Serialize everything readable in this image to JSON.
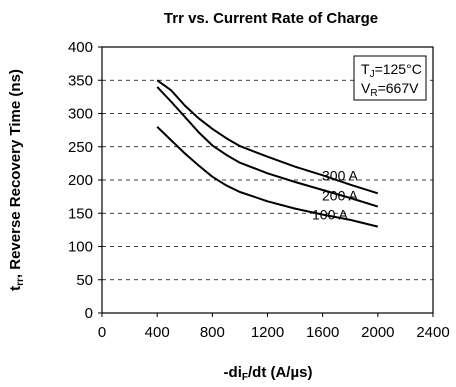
{
  "chart_data": {
    "type": "line",
    "title": "Trr vs. Current Rate of Charge",
    "xlabel": {
      "main": "-di",
      "sub": "F",
      "rest": "/dt (A/µs)"
    },
    "ylabel": {
      "main": "t",
      "sub": "rr",
      "rest": ", Reverse Recovery Time (ns)"
    },
    "xlim": [
      0,
      2400
    ],
    "ylim": [
      0,
      400
    ],
    "xticks": [
      "0",
      "400",
      "800",
      "1200",
      "1600",
      "2000",
      "2400"
    ],
    "yticks": [
      "0",
      "50",
      "100",
      "150",
      "200",
      "250",
      "300",
      "350",
      "400"
    ],
    "grid": "dashed-horizontal",
    "conditions": [
      {
        "main": "T",
        "sub": "J",
        "rest": "=125°C"
      },
      {
        "main": "V",
        "sub": "R",
        "rest": "=667V"
      }
    ],
    "series": [
      {
        "name": "300 A",
        "x": [
          400,
          500,
          600,
          700,
          800,
          900,
          1000,
          1200,
          1400,
          1600,
          1800,
          2000
        ],
        "y": [
          350,
          335,
          312,
          293,
          277,
          263,
          251,
          235,
          220,
          207,
          193,
          180
        ]
      },
      {
        "name": "200 A",
        "x": [
          400,
          500,
          600,
          700,
          800,
          900,
          1000,
          1200,
          1400,
          1600,
          1800,
          2000
        ],
        "y": [
          340,
          318,
          295,
          272,
          252,
          238,
          226,
          210,
          197,
          185,
          173,
          160
        ]
      },
      {
        "name": "100 A",
        "x": [
          400,
          500,
          600,
          700,
          800,
          900,
          1000,
          1200,
          1400,
          1600,
          1800,
          2000
        ],
        "y": [
          280,
          260,
          240,
          222,
          205,
          192,
          182,
          168,
          157,
          148,
          140,
          130
        ]
      }
    ]
  }
}
